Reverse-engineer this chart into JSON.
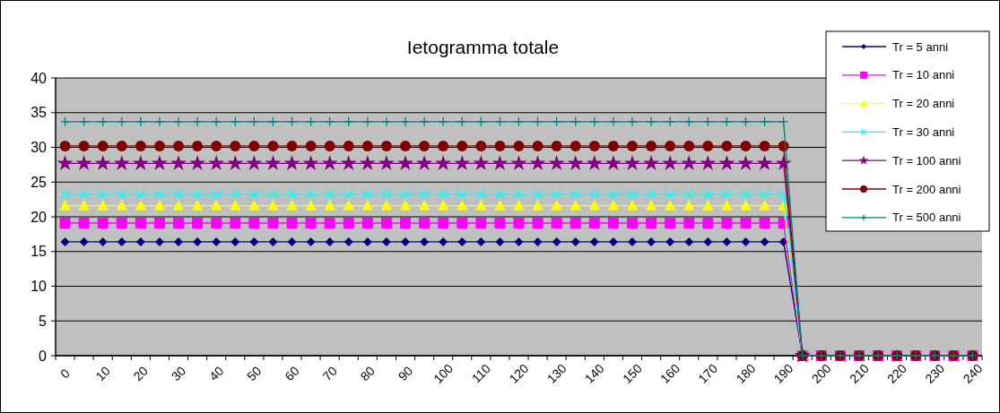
{
  "chart_data": {
    "type": "line",
    "title": "Ietogramma totale",
    "categories": [
      "0",
      null,
      "10",
      null,
      "20",
      null,
      "30",
      null,
      "40",
      null,
      "50",
      null,
      "60",
      null,
      "70",
      null,
      "80",
      null,
      "90",
      null,
      "100",
      null,
      "110",
      null,
      "120",
      null,
      "130",
      null,
      "140",
      null,
      "150",
      null,
      "160",
      null,
      "170",
      null,
      "180",
      null,
      "190",
      null,
      "200",
      null,
      "210",
      null,
      "220",
      null,
      "230",
      null,
      "240"
    ],
    "ylim": [
      0,
      40
    ],
    "yticks": [
      0,
      5,
      10,
      15,
      20,
      25,
      30,
      35,
      40
    ],
    "grid": "y",
    "legend": "top right",
    "series": [
      {
        "name": "Tr = 5 anni",
        "color": "#000080",
        "marker": "diamond",
        "values": [
          16.4,
          16.4,
          16.4,
          16.4,
          16.4,
          16.4,
          16.4,
          16.4,
          16.4,
          16.4,
          16.4,
          16.4,
          16.4,
          16.4,
          16.4,
          16.4,
          16.4,
          16.4,
          16.4,
          16.4,
          16.4,
          16.4,
          16.4,
          16.4,
          16.4,
          16.4,
          16.4,
          16.4,
          16.4,
          16.4,
          16.4,
          16.4,
          16.4,
          16.4,
          16.4,
          16.4,
          16.4,
          16.4,
          16.4,
          0,
          null,
          null,
          null,
          null,
          null,
          null,
          null,
          null,
          null
        ]
      },
      {
        "name": "Tr = 10 anni",
        "color": "#ff00ff",
        "marker": "square",
        "values": [
          19.1,
          19.1,
          19.1,
          19.1,
          19.1,
          19.1,
          19.1,
          19.1,
          19.1,
          19.1,
          19.1,
          19.1,
          19.1,
          19.1,
          19.1,
          19.1,
          19.1,
          19.1,
          19.1,
          19.1,
          19.1,
          19.1,
          19.1,
          19.1,
          19.1,
          19.1,
          19.1,
          19.1,
          19.1,
          19.1,
          19.1,
          19.1,
          19.1,
          19.1,
          19.1,
          19.1,
          19.1,
          19.1,
          19.1,
          0,
          0,
          0,
          0,
          0,
          0,
          0,
          0,
          0,
          0
        ]
      },
      {
        "name": "Tr = 20 anni",
        "color": "#ffff00",
        "marker": "triangle",
        "values": [
          21.6,
          21.6,
          21.6,
          21.6,
          21.6,
          21.6,
          21.6,
          21.6,
          21.6,
          21.6,
          21.6,
          21.6,
          21.6,
          21.6,
          21.6,
          21.6,
          21.6,
          21.6,
          21.6,
          21.6,
          21.6,
          21.6,
          21.6,
          21.6,
          21.6,
          21.6,
          21.6,
          21.6,
          21.6,
          21.6,
          21.6,
          21.6,
          21.6,
          21.6,
          21.6,
          21.6,
          21.6,
          21.6,
          21.6,
          0,
          null,
          null,
          null,
          null,
          null,
          null,
          null,
          null,
          null
        ]
      },
      {
        "name": "Tr = 30 anni",
        "color": "#00ffff",
        "marker": "cross",
        "values": [
          23.2,
          23.2,
          23.2,
          23.2,
          23.2,
          23.2,
          23.2,
          23.2,
          23.2,
          23.2,
          23.2,
          23.2,
          23.2,
          23.2,
          23.2,
          23.2,
          23.2,
          23.2,
          23.2,
          23.2,
          23.2,
          23.2,
          23.2,
          23.2,
          23.2,
          23.2,
          23.2,
          23.2,
          23.2,
          23.2,
          23.2,
          23.2,
          23.2,
          23.2,
          23.2,
          23.2,
          23.2,
          23.2,
          23.2,
          0,
          null,
          null,
          null,
          null,
          null,
          null,
          null,
          null,
          null
        ]
      },
      {
        "name": "Tr = 100 anni",
        "color": "#800080",
        "marker": "star",
        "values": [
          27.7,
          27.7,
          27.7,
          27.7,
          27.7,
          27.7,
          27.7,
          27.7,
          27.7,
          27.7,
          27.7,
          27.7,
          27.7,
          27.7,
          27.7,
          27.7,
          27.7,
          27.7,
          27.7,
          27.7,
          27.7,
          27.7,
          27.7,
          27.7,
          27.7,
          27.7,
          27.7,
          27.7,
          27.7,
          27.7,
          27.7,
          27.7,
          27.7,
          27.7,
          27.7,
          27.7,
          27.7,
          27.7,
          27.7,
          0,
          null,
          null,
          null,
          null,
          null,
          null,
          null,
          null,
          null
        ]
      },
      {
        "name": "Tr = 200 anni",
        "color": "#800000",
        "marker": "circle",
        "values": [
          30.2,
          30.2,
          30.2,
          30.2,
          30.2,
          30.2,
          30.2,
          30.2,
          30.2,
          30.2,
          30.2,
          30.2,
          30.2,
          30.2,
          30.2,
          30.2,
          30.2,
          30.2,
          30.2,
          30.2,
          30.2,
          30.2,
          30.2,
          30.2,
          30.2,
          30.2,
          30.2,
          30.2,
          30.2,
          30.2,
          30.2,
          30.2,
          30.2,
          30.2,
          30.2,
          30.2,
          30.2,
          30.2,
          30.2,
          0,
          0,
          0,
          0,
          0,
          0,
          0,
          0,
          0,
          0
        ]
      },
      {
        "name": "Tr = 500 anni",
        "color": "#008080",
        "marker": "plus",
        "values": [
          33.7,
          33.7,
          33.7,
          33.7,
          33.7,
          33.7,
          33.7,
          33.7,
          33.7,
          33.7,
          33.7,
          33.7,
          33.7,
          33.7,
          33.7,
          33.7,
          33.7,
          33.7,
          33.7,
          33.7,
          33.7,
          33.7,
          33.7,
          33.7,
          33.7,
          33.7,
          33.7,
          33.7,
          33.7,
          33.7,
          33.7,
          33.7,
          33.7,
          33.7,
          33.7,
          33.7,
          33.7,
          33.7,
          33.7,
          0,
          0,
          0,
          0,
          0,
          0,
          0,
          0,
          0,
          0
        ]
      }
    ]
  }
}
